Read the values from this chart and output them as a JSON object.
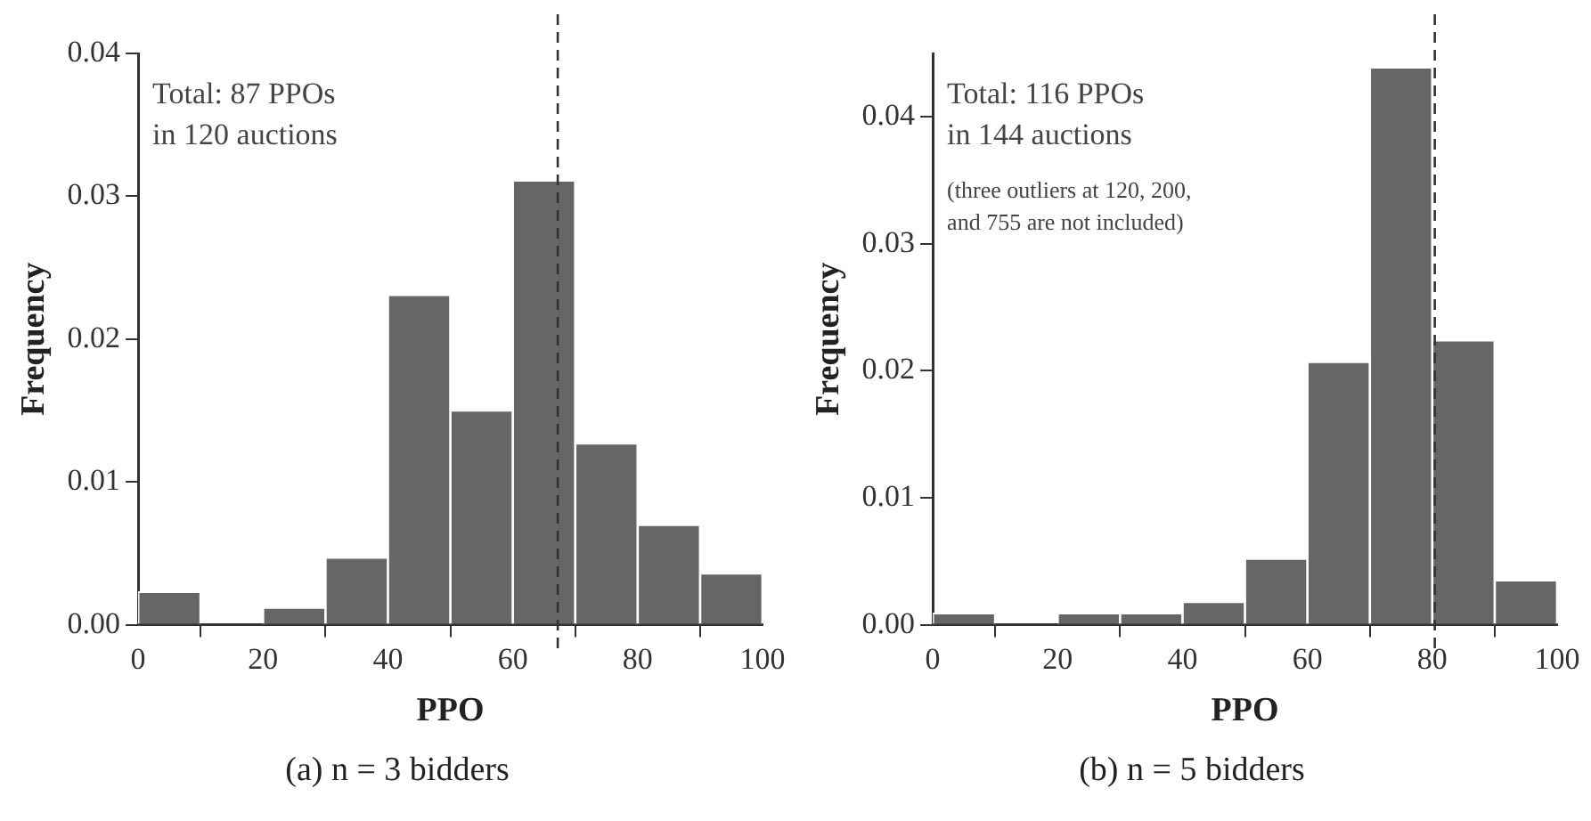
{
  "chart_data": [
    {
      "type": "histogram",
      "title": "(a) n = 3 bidders",
      "xlabel": "PPO",
      "ylabel": "Frequency",
      "color": "#666666",
      "bins": [
        0,
        10,
        20,
        30,
        40,
        50,
        60,
        70,
        80,
        90,
        100
      ],
      "values": [
        0.0023,
        0,
        0.0012,
        0.0047,
        0.0231,
        0.015,
        0.0311,
        0.0127,
        0.007,
        0.0036
      ],
      "xlim": [
        0,
        100
      ],
      "xticks": [
        0,
        20,
        40,
        60,
        80,
        100
      ],
      "ylim": [
        0,
        0.04
      ],
      "yticks": [
        {
          "value": 0,
          "label": "0.00"
        },
        {
          "value": 0.01,
          "label": "0.01"
        },
        {
          "value": 0.02,
          "label": "0.02"
        },
        {
          "value": 0.03,
          "label": "0.03"
        },
        {
          "value": 0.04,
          "label": "0.04"
        }
      ],
      "ref_lines": [
        {
          "axis": "x",
          "value": 67.2,
          "line_style": "dashed",
          "color": "#333333"
        }
      ],
      "annotations": [
        "Total: 87 PPOs\nin 120 auctions"
      ],
      "grid": false,
      "legend": false
    },
    {
      "type": "histogram",
      "title": "(b) n = 5 bidders",
      "xlabel": "PPO",
      "ylabel": "Frequency",
      "color": "#666666",
      "bins": [
        0,
        10,
        20,
        30,
        40,
        50,
        60,
        70,
        80,
        90,
        100
      ],
      "values": [
        0.0009,
        0,
        0.0009,
        0.0009,
        0.0018,
        0.0052,
        0.0207,
        0.0439,
        0.0224,
        0.0035
      ],
      "xlim": [
        0,
        100
      ],
      "xticks": [
        0,
        20,
        40,
        60,
        80,
        100
      ],
      "ylim": [
        0,
        0.045
      ],
      "yticks": [
        {
          "value": 0,
          "label": "0.00"
        },
        {
          "value": 0.01,
          "label": "0.01"
        },
        {
          "value": 0.02,
          "label": "0.02"
        },
        {
          "value": 0.03,
          "label": "0.03"
        },
        {
          "value": 0.04,
          "label": "0.04"
        }
      ],
      "ref_lines": [
        {
          "axis": "x",
          "value": 80.4,
          "line_style": "dashed",
          "color": "#333333"
        }
      ],
      "annotations": [
        "Total: 116 PPOs\nin 144 auctions",
        "(three outliers at 120, 200,\nand 755 are not included)"
      ],
      "grid": false,
      "legend": false
    }
  ]
}
